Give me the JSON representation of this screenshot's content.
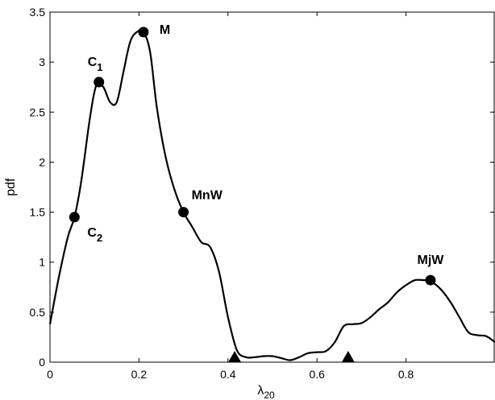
{
  "chart_data": {
    "type": "line",
    "xlabel": "λ",
    "xlabel_sub": "20",
    "ylabel": "pdf",
    "xlim": [
      0,
      1
    ],
    "ylim": [
      0,
      3.5
    ],
    "x_ticks": [
      0,
      0.2,
      0.4,
      0.6,
      0.8
    ],
    "x_tick_labels": [
      "0",
      "0.2",
      "0.4",
      "0.6",
      "0.8"
    ],
    "y_ticks": [
      0,
      0.5,
      1,
      1.5,
      2,
      2.5,
      3,
      3.5
    ],
    "y_tick_labels": [
      "0",
      "0.5",
      "1",
      "1.5",
      "2",
      "2.5",
      "3",
      "3.5"
    ],
    "grid": false,
    "series": [
      {
        "x": [
          0.0,
          0.02,
          0.04,
          0.055,
          0.07,
          0.09,
          0.105,
          0.12,
          0.135,
          0.15,
          0.165,
          0.18,
          0.195,
          0.21,
          0.225,
          0.24,
          0.26,
          0.28,
          0.3,
          0.32,
          0.34,
          0.36,
          0.38,
          0.4,
          0.42,
          0.44,
          0.46,
          0.48,
          0.5,
          0.52,
          0.54,
          0.56,
          0.58,
          0.6,
          0.62,
          0.64,
          0.66,
          0.68,
          0.7,
          0.72,
          0.74,
          0.76,
          0.78,
          0.8,
          0.82,
          0.84,
          0.85,
          0.86,
          0.88,
          0.9,
          0.92,
          0.94,
          0.96,
          0.98,
          1.0
        ],
        "y": [
          0.38,
          0.85,
          1.25,
          1.45,
          1.8,
          2.45,
          2.78,
          2.75,
          2.6,
          2.6,
          2.9,
          3.2,
          3.3,
          3.3,
          3.1,
          2.55,
          2.05,
          1.72,
          1.5,
          1.35,
          1.2,
          1.15,
          0.9,
          0.45,
          0.12,
          0.05,
          0.05,
          0.06,
          0.06,
          0.04,
          0.02,
          0.05,
          0.09,
          0.1,
          0.11,
          0.2,
          0.36,
          0.38,
          0.39,
          0.45,
          0.53,
          0.6,
          0.7,
          0.77,
          0.82,
          0.82,
          0.82,
          0.8,
          0.72,
          0.6,
          0.45,
          0.3,
          0.27,
          0.26,
          0.2
        ]
      }
    ],
    "points": [
      {
        "label": "C",
        "sub": "1",
        "x": 0.11,
        "y": 2.8,
        "label_pos": "above"
      },
      {
        "label": "M",
        "sub": "",
        "x": 0.21,
        "y": 3.3,
        "label_pos": "right"
      },
      {
        "label": "MnW",
        "sub": "",
        "x": 0.3,
        "y": 1.5,
        "label_pos": "above-right"
      },
      {
        "label": "C",
        "sub": "2",
        "x": 0.055,
        "y": 1.45,
        "label_pos": "below-right"
      },
      {
        "label": "MjW",
        "sub": "",
        "x": 0.855,
        "y": 0.82,
        "label_pos": "above"
      }
    ],
    "triangles": [
      {
        "x": 0.415,
        "y": 0
      },
      {
        "x": 0.67,
        "y": 0
      }
    ]
  }
}
